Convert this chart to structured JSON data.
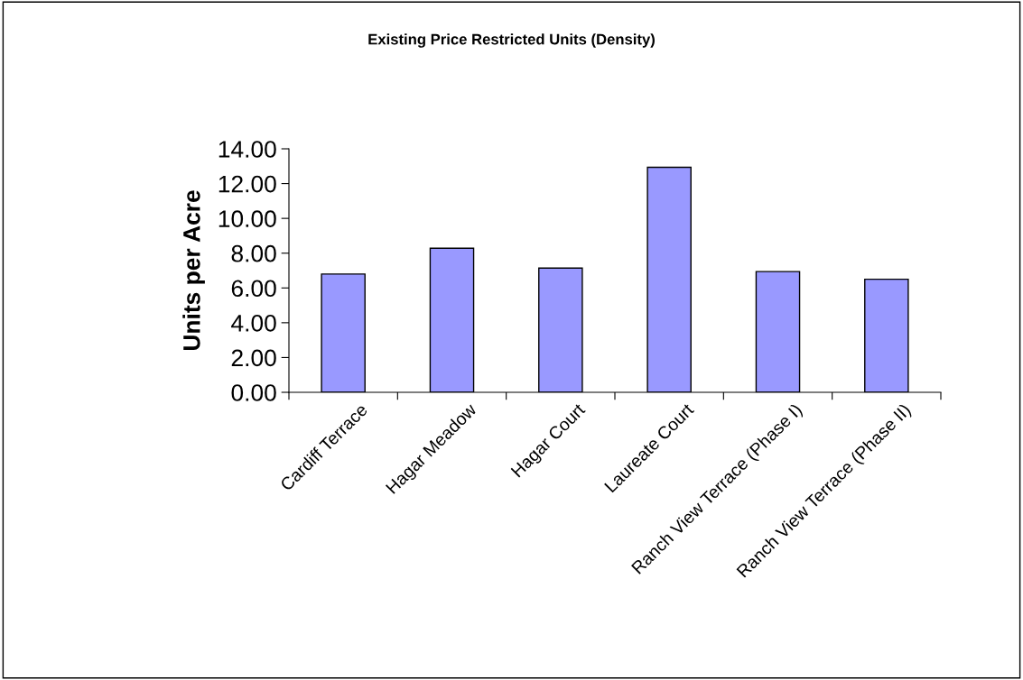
{
  "chart_data": {
    "type": "bar",
    "title": "Existing Price Restricted Units (Density)",
    "ylabel": "Units per Acre",
    "categories": [
      "Cardiff Terrace",
      "Hagar Meadow",
      "Hagar Court",
      "Laureate Court",
      "Ranch View Terrace (Phase I)",
      "Ranch View Terrace (Phase II)"
    ],
    "values": [
      6.8,
      8.28,
      7.14,
      12.94,
      6.94,
      6.5
    ],
    "color": "#9999ff",
    "ylim": [
      0,
      14
    ],
    "yticks": [
      {
        "value": 0,
        "label": "0.00"
      },
      {
        "value": 2,
        "label": "2.00"
      },
      {
        "value": 4,
        "label": "4.00"
      },
      {
        "value": 6,
        "label": "6.00"
      },
      {
        "value": 8,
        "label": "8.00"
      },
      {
        "value": 10,
        "label": "10.00"
      },
      {
        "value": 12,
        "label": "12.00"
      },
      {
        "value": 14,
        "label": "14.00"
      }
    ],
    "grid": false,
    "legend": false
  }
}
